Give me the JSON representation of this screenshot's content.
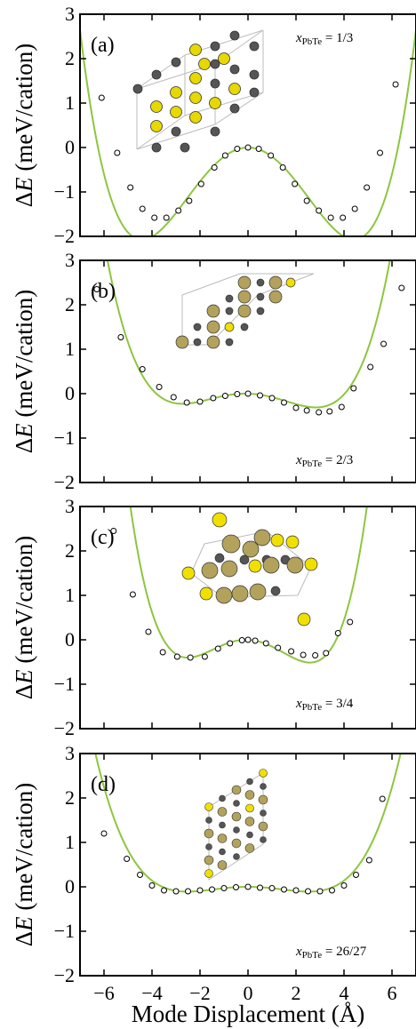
{
  "chart_data": [
    {
      "type": "line",
      "panel_tag": "(a)",
      "composition": {
        "var": "x",
        "sub": "PbTe",
        "value": "= 1/3"
      },
      "xlim": [
        -7,
        7
      ],
      "ylim": [
        -2,
        3
      ],
      "xticks": [
        -6,
        -4,
        -2,
        0,
        2,
        4,
        6
      ],
      "xtick_labels": [
        "",
        "",
        "",
        "",
        "",
        "",
        ""
      ],
      "yticks": [
        -2,
        -1,
        0,
        1,
        2,
        3
      ],
      "ytick_labels": [
        "−2",
        "−1",
        "0",
        "1",
        "2",
        "3"
      ],
      "ylabel_symbol": "Δ",
      "ylabel_var": "E",
      "ylabel_units": " (meV/cation)",
      "xlabel": "",
      "curve_color": "#8dc63f",
      "fit": {
        "a": 0.00544,
        "b": -0.2125,
        "c": 0.0
      },
      "points": [
        [
          -6.1,
          1.12
        ],
        [
          -5.45,
          -0.12
        ],
        [
          -4.9,
          -0.9
        ],
        [
          -4.4,
          -1.38
        ],
        [
          -3.9,
          -1.58
        ],
        [
          -3.4,
          -1.58
        ],
        [
          -2.9,
          -1.42
        ],
        [
          -2.45,
          -1.2
        ],
        [
          -1.95,
          -0.82
        ],
        [
          -1.4,
          -0.45
        ],
        [
          -0.95,
          -0.18
        ],
        [
          -0.45,
          -0.03
        ],
        [
          0.0,
          0.0
        ],
        [
          0.45,
          -0.03
        ],
        [
          0.95,
          -0.18
        ],
        [
          1.45,
          -0.45
        ],
        [
          1.95,
          -0.82
        ],
        [
          2.45,
          -1.2
        ],
        [
          2.95,
          -1.42
        ],
        [
          3.45,
          -1.58
        ],
        [
          3.95,
          -1.58
        ],
        [
          4.45,
          -1.38
        ],
        [
          4.95,
          -0.9
        ],
        [
          5.5,
          -0.12
        ],
        [
          6.15,
          1.42
        ]
      ]
    },
    {
      "type": "line",
      "panel_tag": "(b)",
      "composition": {
        "var": "x",
        "sub": "PbTe",
        "value": "= 2/3"
      },
      "xlim": [
        -7,
        7
      ],
      "ylim": [
        -2,
        3
      ],
      "xticks": [
        -6,
        -4,
        -2,
        0,
        2,
        4,
        6
      ],
      "xtick_labels": [
        "",
        "",
        "",
        "",
        "",
        "",
        ""
      ],
      "yticks": [
        -2,
        -1,
        0,
        1,
        2,
        3
      ],
      "ytick_labels": [
        "−2",
        "−1",
        "0",
        "1",
        "2",
        "3"
      ],
      "ylabel_symbol": "Δ",
      "ylabel_var": "E",
      "ylabel_units": " (meV/cation)",
      "xlabel": "",
      "curve_color": "#8dc63f",
      "fit": {
        "a": 0.00452,
        "b": -0.0697,
        "c": -0.0145
      },
      "points": [
        [
          -6.3,
          2.35
        ],
        [
          -5.3,
          1.27
        ],
        [
          -4.4,
          0.55
        ],
        [
          -3.7,
          0.15
        ],
        [
          -3.1,
          -0.08
        ],
        [
          -2.55,
          -0.2
        ],
        [
          -2.0,
          -0.18
        ],
        [
          -1.45,
          -0.1
        ],
        [
          -0.95,
          -0.05
        ],
        [
          -0.45,
          -0.01
        ],
        [
          0.0,
          0.0
        ],
        [
          0.5,
          -0.04
        ],
        [
          1.0,
          -0.1
        ],
        [
          1.5,
          -0.2
        ],
        [
          2.0,
          -0.32
        ],
        [
          2.45,
          -0.38
        ],
        [
          2.95,
          -0.42
        ],
        [
          3.4,
          -0.4
        ],
        [
          3.9,
          -0.3
        ],
        [
          4.4,
          0.12
        ],
        [
          5.1,
          0.6
        ],
        [
          5.65,
          1.12
        ],
        [
          6.4,
          2.38
        ]
      ]
    },
    {
      "type": "line",
      "panel_tag": "(c)",
      "composition": {
        "var": "x",
        "sub": "PbTe",
        "value": "= 3/4"
      },
      "xlim": [
        -7,
        7
      ],
      "ylim": [
        -2,
        3
      ],
      "xticks": [
        -6,
        -4,
        -2,
        0,
        2,
        4,
        6
      ],
      "xtick_labels": [
        "",
        "",
        "",
        "",
        "",
        "",
        ""
      ],
      "yticks": [
        -2,
        -1,
        0,
        1,
        2,
        3
      ],
      "ytick_labels": [
        "−2",
        "−1",
        "0",
        "1",
        "2",
        "3"
      ],
      "ylabel_symbol": "Δ",
      "ylabel_var": "E",
      "ylabel_units": " (meV/cation)",
      "xlabel": "",
      "curve_color": "#8dc63f",
      "fit": {
        "a": 0.0109,
        "b": -0.1411,
        "c": -0.0218
      },
      "points": [
        [
          -5.6,
          2.45
        ],
        [
          -4.8,
          1.02
        ],
        [
          -4.15,
          0.18
        ],
        [
          -3.55,
          -0.28
        ],
        [
          -2.95,
          -0.38
        ],
        [
          -2.4,
          -0.4
        ],
        [
          -1.8,
          -0.38
        ],
        [
          -1.25,
          -0.2
        ],
        [
          -0.75,
          -0.08
        ],
        [
          -0.25,
          -0.01
        ],
        [
          0.0,
          0.0
        ],
        [
          0.3,
          -0.02
        ],
        [
          0.75,
          -0.08
        ],
        [
          1.25,
          -0.18
        ],
        [
          1.8,
          -0.26
        ],
        [
          2.3,
          -0.34
        ],
        [
          2.8,
          -0.35
        ],
        [
          3.25,
          -0.3
        ],
        [
          3.75,
          0.15
        ],
        [
          4.25,
          0.4
        ]
      ]
    },
    {
      "type": "line",
      "panel_tag": "(d)",
      "composition": {
        "var": "x",
        "sub": "PbTe",
        "value": "= 26/27"
      },
      "xlim": [
        -7,
        7
      ],
      "ylim": [
        -2,
        3
      ],
      "xticks": [
        -6,
        -4,
        -2,
        0,
        2,
        4,
        6
      ],
      "xtick_labels": [
        "−6",
        "−4",
        "−2",
        "0",
        "2",
        "4",
        "6"
      ],
      "yticks": [
        -2,
        -1,
        0,
        1,
        2,
        3
      ],
      "ytick_labels": [
        "−2",
        "−1",
        "0",
        "1",
        "2",
        "3"
      ],
      "ylabel_symbol": "Δ",
      "ylabel_var": "E",
      "ylabel_units": " (meV/cation)",
      "xlabel": "Mode Displacement (Å)",
      "curve_color": "#8dc63f",
      "fit": {
        "a": 0.00268,
        "b": -0.0341,
        "c": 0.0
      },
      "points": [
        [
          -6.0,
          1.2
        ],
        [
          -5.05,
          0.63
        ],
        [
          -4.5,
          0.27
        ],
        [
          -4.0,
          0.03
        ],
        [
          -3.5,
          -0.08
        ],
        [
          -3.0,
          -0.1
        ],
        [
          -2.5,
          -0.1
        ],
        [
          -2.0,
          -0.08
        ],
        [
          -1.5,
          -0.06
        ],
        [
          -1.0,
          -0.03
        ],
        [
          -0.5,
          -0.01
        ],
        [
          0.0,
          0.0
        ],
        [
          0.5,
          -0.02
        ],
        [
          1.0,
          -0.03
        ],
        [
          1.5,
          -0.06
        ],
        [
          2.0,
          -0.08
        ],
        [
          2.5,
          -0.1
        ],
        [
          3.0,
          -0.1
        ],
        [
          3.5,
          -0.08
        ],
        [
          4.0,
          0.03
        ],
        [
          4.5,
          0.27
        ],
        [
          5.05,
          0.6
        ],
        [
          5.6,
          1.98
        ]
      ]
    }
  ]
}
